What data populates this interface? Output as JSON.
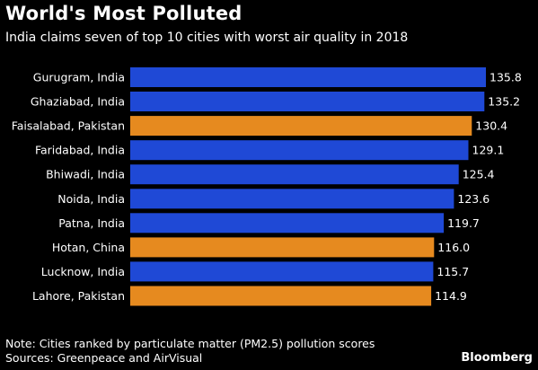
{
  "header": {
    "title": "World's Most Polluted",
    "subtitle": "India claims seven of top 10 cities with worst air quality in 2018"
  },
  "footer": {
    "note": "Note: Cities ranked by particulate matter (PM2.5) pollution scores",
    "sources": "Sources: Greenpeace and AirVisual",
    "brand": "Bloomberg"
  },
  "colors": {
    "india": "#1f49d6",
    "other": "#e68a1f",
    "background": "#000000",
    "text": "#ffffff"
  },
  "chart_data": {
    "type": "bar",
    "orientation": "horizontal",
    "title": "World's Most Polluted",
    "subtitle": "India claims seven of top 10 cities with worst air quality in 2018",
    "categories": [
      "Gurugram, India",
      "Ghaziabad, India",
      "Faisalabad, Pakistan",
      "Faridabad, India",
      "Bhiwadi, India",
      "Noida, India",
      "Patna, India",
      "Hotan, China",
      "Lucknow, India",
      "Lahore, Pakistan"
    ],
    "values": [
      135.8,
      135.2,
      130.4,
      129.1,
      125.4,
      123.6,
      119.7,
      116.0,
      115.7,
      114.9
    ],
    "value_labels": [
      "135.8",
      "135.2",
      "130.4",
      "129.1",
      "125.4",
      "123.6",
      "119.7",
      "116.0",
      "115.7",
      "114.9"
    ],
    "bar_colors": [
      "#1f49d6",
      "#1f49d6",
      "#e68a1f",
      "#1f49d6",
      "#1f49d6",
      "#1f49d6",
      "#1f49d6",
      "#e68a1f",
      "#1f49d6",
      "#e68a1f"
    ],
    "xlim": [
      0,
      135.8
    ],
    "grid": false,
    "xlabel": "",
    "ylabel": ""
  }
}
